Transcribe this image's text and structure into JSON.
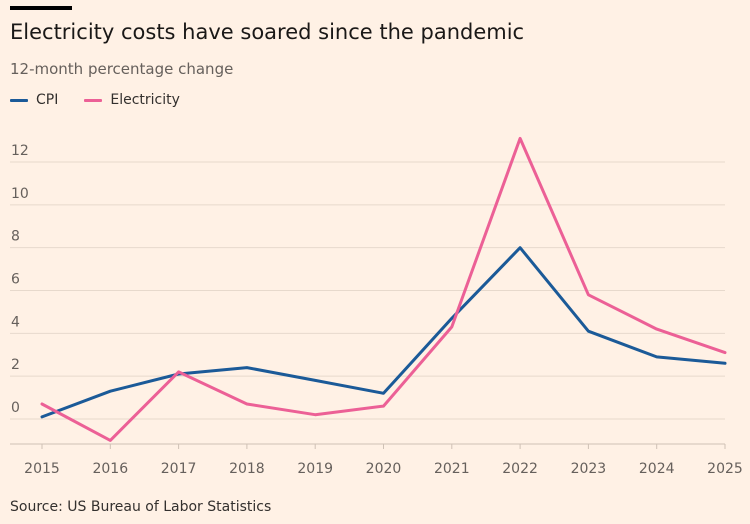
{
  "title": "Electricity costs have soared since the pandemic",
  "subtitle": "12-month percentage change",
  "source": "Source: US Bureau of Labor Statistics",
  "colors": {
    "background": "#fff1e5",
    "cpi": "#1b5a98",
    "electricity": "#ec6096",
    "grid": "#e7d9cc"
  },
  "chart_data": {
    "type": "line",
    "title": "Electricity costs have soared since the pandemic",
    "subtitle": "12-month percentage change",
    "xlabel": "",
    "ylabel": "",
    "x": [
      "2015",
      "2016",
      "2017",
      "2018",
      "2019",
      "2020",
      "2021",
      "2022",
      "2023",
      "2024",
      "2025"
    ],
    "ylim": [
      -1.2,
      13.5
    ],
    "yticks": [
      0,
      2,
      4,
      6,
      8,
      10,
      12
    ],
    "grid": true,
    "legend_position": "top-left",
    "series": [
      {
        "name": "CPI",
        "color": "#1b5a98",
        "values": [
          0.1,
          1.3,
          2.1,
          2.4,
          1.8,
          1.2,
          4.7,
          8.0,
          4.1,
          2.9,
          2.6
        ]
      },
      {
        "name": "Electricity",
        "color": "#ec6096",
        "values": [
          0.7,
          -1.0,
          2.2,
          0.7,
          0.2,
          0.6,
          4.3,
          13.1,
          5.8,
          4.2,
          3.1
        ]
      }
    ]
  }
}
